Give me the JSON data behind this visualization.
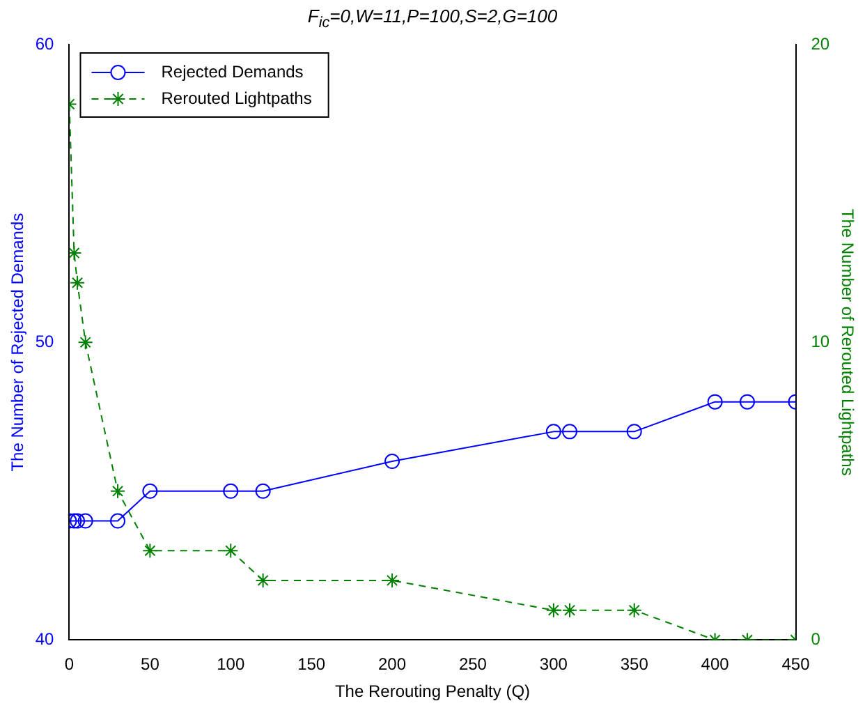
{
  "chart_data": {
    "type": "line",
    "title": "F$_{ic}$=0,W=11,P=100,S=2,G=100",
    "xlabel": "The Rerouting Penalty (Q)",
    "ylabel": "The Number of Rejected Demands",
    "y2label": "The Number of Rerouted Lightpaths",
    "x": [
      0,
      3,
      5,
      10,
      30,
      50,
      100,
      120,
      200,
      300,
      310,
      350,
      400,
      420,
      450
    ],
    "series": [
      {
        "name": "Rejected Demands",
        "color": "#0000ff",
        "marker": "circle",
        "line_style": "solid",
        "values": [
          44,
          44,
          44,
          44,
          44,
          45,
          45,
          45,
          46,
          47,
          47,
          47,
          48,
          48,
          48
        ]
      },
      {
        "name": "Rerouted Lightpaths",
        "color": "#008000",
        "marker": "cross",
        "line_style": "dashed",
        "axis": "y2",
        "values": [
          18,
          13,
          12,
          10,
          5,
          3,
          3,
          2,
          2,
          1,
          1,
          1,
          0,
          0,
          0
        ]
      }
    ],
    "xlim": [
      0,
      450
    ],
    "xticks": [
      0,
      50,
      100,
      150,
      200,
      250,
      300,
      350,
      400,
      450
    ],
    "ylim": [
      40,
      60
    ],
    "yticks": [
      40,
      50,
      60
    ],
    "y2lim": [
      0,
      20
    ],
    "y2ticks": [
      0,
      10,
      20
    ],
    "grid": false,
    "legend": "top left"
  }
}
